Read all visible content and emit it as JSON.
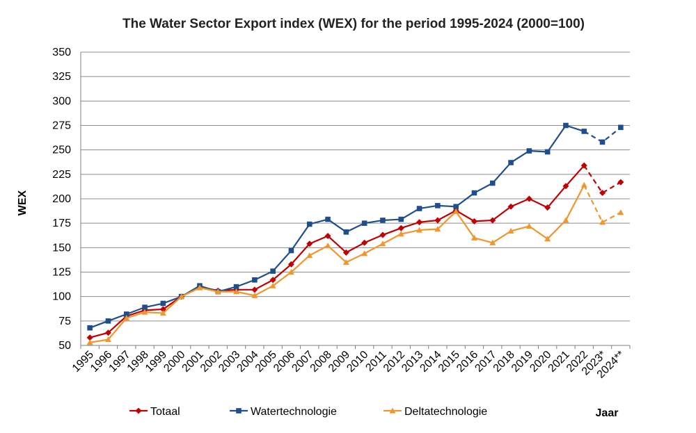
{
  "chart_data": {
    "type": "line",
    "title": "The Water Sector Export index (WEX) for the period 1995-2024 (2000=100)",
    "xlabel": "Jaar",
    "ylabel": "WEX",
    "ylim": [
      50,
      350
    ],
    "yticks": [
      "50",
      "75",
      "100",
      "125",
      "150",
      "175",
      "200",
      "225",
      "250",
      "275",
      "300",
      "325",
      "350"
    ],
    "grid": true,
    "legend_position": "bottom",
    "categories": [
      "1995",
      "1996",
      "1997",
      "1998",
      "1999",
      "2000",
      "2001",
      "2002",
      "2003",
      "2004",
      "2005",
      "2006",
      "2007",
      "2008",
      "2009",
      "2010",
      "2011",
      "2012",
      "2013",
      "2014",
      "2015",
      "2016",
      "2017",
      "2018",
      "2019",
      "2020",
      "2021",
      "2022",
      "2023*",
      "2024**"
    ],
    "dashed_from_index": 27,
    "series": [
      {
        "name": "Totaal",
        "color": "#c00000",
        "marker": "diamond",
        "values": [
          58,
          63,
          80,
          86,
          87,
          100,
          110,
          106,
          107,
          107,
          117,
          133,
          154,
          162,
          145,
          155,
          163,
          170,
          176,
          178,
          188,
          177,
          178,
          192,
          200,
          191,
          213,
          234,
          206,
          217
        ]
      },
      {
        "name": "Watertechnologie",
        "color": "#1f4e8c",
        "marker": "square",
        "values": [
          68,
          75,
          82,
          89,
          93,
          100,
          111,
          105,
          110,
          117,
          126,
          147,
          174,
          179,
          166,
          175,
          178,
          179,
          190,
          193,
          192,
          206,
          216,
          237,
          249,
          248,
          275,
          269,
          258,
          273
        ]
      },
      {
        "name": "Deltatechnologie",
        "color": "#f0962a",
        "marker": "triangle",
        "values": [
          53,
          56,
          78,
          84,
          83,
          100,
          109,
          105,
          105,
          101,
          111,
          125,
          142,
          152,
          135,
          144,
          154,
          164,
          168,
          169,
          187,
          160,
          155,
          167,
          172,
          159,
          178,
          214,
          176,
          186
        ]
      }
    ]
  }
}
